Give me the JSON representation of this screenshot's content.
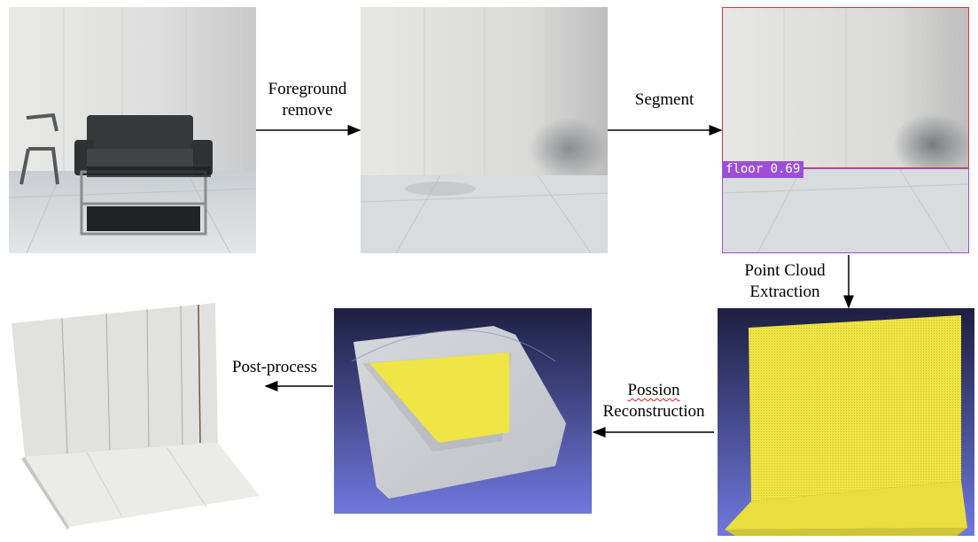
{
  "steps": {
    "foreground_remove": {
      "line1": "Foreground",
      "line2": "remove"
    },
    "segment": {
      "label": "Segment"
    },
    "point_cloud": {
      "line1": "Point Cloud",
      "line2": "Extraction"
    },
    "possion": {
      "line1": "Possion",
      "line2": "Reconstruction"
    },
    "post_process": {
      "label": "Post-process"
    }
  },
  "segmentation": {
    "badge": "floor 0.69"
  },
  "colors": {
    "wall": "#e6e6e4",
    "floor": "#d7dbde",
    "segment_box": "#d03a3a",
    "segment_badge": "#9b4fd6",
    "point_cloud": "#f0e64a",
    "meshlab_bg_top": "#1d1f40",
    "meshlab_bg_bottom": "#6f78dd"
  }
}
